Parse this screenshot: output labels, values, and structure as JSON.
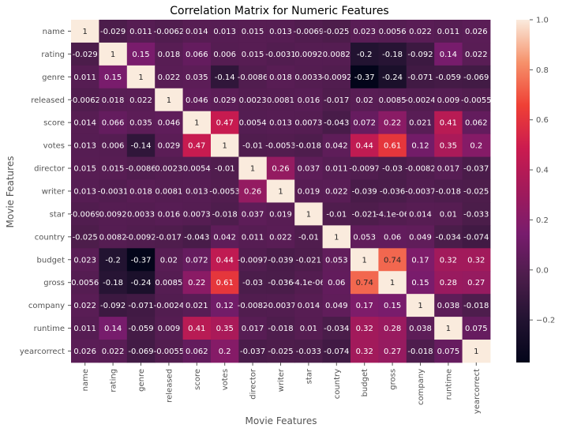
{
  "chart_data": {
    "type": "heatmap",
    "title": "Correlation Matrix for Numeric Features",
    "xlabel": "Movie Features",
    "ylabel": "Movie Features",
    "rows": [
      "name",
      "rating",
      "genre",
      "released",
      "score",
      "votes",
      "director",
      "writer",
      "star",
      "country",
      "budget",
      "gross",
      "company",
      "runtime",
      "yearcorrect"
    ],
    "columns": [
      "name",
      "rating",
      "genre",
      "released",
      "score",
      "votes",
      "director",
      "writer",
      "star",
      "country",
      "budget",
      "gross",
      "company",
      "runtime",
      "yearcorrect"
    ],
    "values": [
      [
        1,
        -0.029,
        0.011,
        -0.0062,
        0.014,
        0.013,
        0.015,
        0.013,
        -0.0069,
        -0.025,
        0.023,
        0.0056,
        0.022,
        0.011,
        0.026
      ],
      [
        -0.029,
        1,
        0.15,
        0.018,
        0.066,
        0.006,
        0.015,
        -0.0031,
        0.0092,
        0.0082,
        -0.2,
        -0.18,
        -0.092,
        0.14,
        0.022
      ],
      [
        0.011,
        0.15,
        1,
        0.022,
        0.035,
        -0.14,
        -0.0086,
        0.018,
        0.0033,
        -0.0092,
        -0.37,
        -0.24,
        -0.071,
        -0.059,
        -0.069
      ],
      [
        -0.0062,
        0.018,
        0.022,
        1,
        0.046,
        0.029,
        0.0023,
        0.0081,
        0.016,
        -0.017,
        0.02,
        0.0085,
        -0.0024,
        0.009,
        -0.0055
      ],
      [
        0.014,
        0.066,
        0.035,
        0.046,
        1,
        0.47,
        0.0054,
        0.013,
        0.0073,
        -0.043,
        0.072,
        0.22,
        0.021,
        0.41,
        0.062
      ],
      [
        0.013,
        0.006,
        -0.14,
        0.029,
        0.47,
        1,
        -0.01,
        -0.0053,
        -0.018,
        0.042,
        0.44,
        0.61,
        0.12,
        0.35,
        0.2
      ],
      [
        0.015,
        0.015,
        -0.0086,
        0.0023,
        0.0054,
        -0.01,
        1,
        0.26,
        0.037,
        0.011,
        -0.0097,
        -0.03,
        -0.0082,
        0.017,
        -0.037
      ],
      [
        0.013,
        -0.0031,
        0.018,
        0.0081,
        0.013,
        -0.0053,
        0.26,
        1,
        0.019,
        0.022,
        -0.039,
        -0.036,
        -0.0037,
        -0.018,
        -0.025
      ],
      [
        -0.0069,
        0.0092,
        0.0033,
        0.016,
        0.0073,
        -0.018,
        0.037,
        0.019,
        1,
        -0.01,
        -0.021,
        -4.1e-06,
        0.014,
        0.01,
        -0.033
      ],
      [
        -0.025,
        0.0082,
        -0.0092,
        -0.017,
        -0.043,
        0.042,
        0.011,
        0.022,
        -0.01,
        1,
        0.053,
        0.06,
        0.049,
        -0.034,
        -0.074
      ],
      [
        0.023,
        -0.2,
        -0.37,
        0.02,
        0.072,
        0.44,
        -0.0097,
        -0.039,
        -0.021,
        0.053,
        1,
        0.74,
        0.17,
        0.32,
        0.32
      ],
      [
        0.0056,
        -0.18,
        -0.24,
        0.0085,
        0.22,
        0.61,
        -0.03,
        -0.036,
        -4.1e-06,
        0.06,
        0.74,
        1,
        0.15,
        0.28,
        0.27
      ],
      [
        0.022,
        -0.092,
        -0.071,
        -0.0024,
        0.021,
        0.12,
        -0.0082,
        -0.0037,
        0.014,
        0.049,
        0.17,
        0.15,
        1,
        0.038,
        -0.018
      ],
      [
        0.011,
        0.14,
        -0.059,
        0.009,
        0.41,
        0.35,
        0.017,
        -0.018,
        0.01,
        -0.034,
        0.32,
        0.28,
        0.038,
        1,
        0.075
      ],
      [
        0.026,
        0.022,
        -0.069,
        -0.0055,
        0.062,
        0.2,
        -0.037,
        -0.025,
        -0.033,
        -0.074,
        0.32,
        0.27,
        -0.018,
        0.075,
        1
      ]
    ],
    "labels": [
      [
        "1",
        "-0.029",
        "0.011",
        "-0.0062",
        "0.014",
        "0.013",
        "0.015",
        "0.013",
        "-0.0069",
        "-0.025",
        "0.023",
        "0.0056",
        "0.022",
        "0.011",
        "0.026"
      ],
      [
        "-0.029",
        "1",
        "0.15",
        "0.018",
        "0.066",
        "0.006",
        "0.015",
        "-0.0031",
        "0.0092",
        "0.0082",
        "-0.2",
        "-0.18",
        "-0.092",
        "0.14",
        "0.022"
      ],
      [
        "0.011",
        "0.15",
        "1",
        "0.022",
        "0.035",
        "-0.14",
        "-0.0086",
        "0.018",
        "0.0033",
        "-0.0092",
        "-0.37",
        "-0.24",
        "-0.071",
        "-0.059",
        "-0.069"
      ],
      [
        "-0.0062",
        "0.018",
        "0.022",
        "1",
        "0.046",
        "0.029",
        "0.0023",
        "0.0081",
        "0.016",
        "-0.017",
        "0.02",
        "0.0085",
        "-0.0024",
        "0.009",
        "-0.0055"
      ],
      [
        "0.014",
        "0.066",
        "0.035",
        "0.046",
        "1",
        "0.47",
        "0.0054",
        "0.013",
        "0.0073",
        "-0.043",
        "0.072",
        "0.22",
        "0.021",
        "0.41",
        "0.062"
      ],
      [
        "0.013",
        "0.006",
        "-0.14",
        "0.029",
        "0.47",
        "1",
        "-0.01",
        "-0.0053",
        "-0.018",
        "0.042",
        "0.44",
        "0.61",
        "0.12",
        "0.35",
        "0.2"
      ],
      [
        "0.015",
        "0.015",
        "-0.0086",
        "0.0023",
        "0.0054",
        "-0.01",
        "1",
        "0.26",
        "0.037",
        "0.011",
        "-0.0097",
        "-0.03",
        "-0.0082",
        "0.017",
        "-0.037"
      ],
      [
        "0.013",
        "-0.0031",
        "0.018",
        "0.0081",
        "0.013",
        "-0.0053",
        "0.26",
        "1",
        "0.019",
        "0.022",
        "-0.039",
        "-0.036",
        "-0.0037",
        "-0.018",
        "-0.025"
      ],
      [
        "-0.0069",
        "0.0092",
        "0.0033",
        "0.016",
        "0.0073",
        "-0.018",
        "0.037",
        "0.019",
        "1",
        "-0.01",
        "-0.021",
        "-4.1e-06",
        "0.014",
        "0.01",
        "-0.033"
      ],
      [
        "-0.025",
        "0.0082",
        "-0.0092",
        "-0.017",
        "-0.043",
        "0.042",
        "0.011",
        "0.022",
        "-0.01",
        "1",
        "0.053",
        "0.06",
        "0.049",
        "-0.034",
        "-0.074"
      ],
      [
        "0.023",
        "-0.2",
        "-0.37",
        "0.02",
        "0.072",
        "0.44",
        "-0.0097",
        "-0.039",
        "-0.021",
        "0.053",
        "1",
        "0.74",
        "0.17",
        "0.32",
        "0.32"
      ],
      [
        "0.0056",
        "-0.18",
        "-0.24",
        "0.0085",
        "0.22",
        "0.61",
        "-0.03",
        "-0.036",
        "-4.1e-06",
        "0.06",
        "0.74",
        "1",
        "0.15",
        "0.28",
        "0.27"
      ],
      [
        "0.022",
        "-0.092",
        "-0.071",
        "-0.0024",
        "0.021",
        "0.12",
        "-0.0082",
        "-0.0037",
        "0.014",
        "0.049",
        "0.17",
        "0.15",
        "1",
        "0.038",
        "-0.018"
      ],
      [
        "0.011",
        "0.14",
        "-0.059",
        "0.009",
        "0.41",
        "0.35",
        "0.017",
        "-0.018",
        "0.01",
        "-0.034",
        "0.32",
        "0.28",
        "0.038",
        "1",
        "0.075"
      ],
      [
        "0.026",
        "0.022",
        "-0.069",
        "-0.0055",
        "0.062",
        "0.2",
        "-0.037",
        "-0.025",
        "-0.033",
        "-0.074",
        "0.32",
        "0.27",
        "-0.018",
        "0.075",
        "1"
      ]
    ],
    "colorscale": "rocket",
    "colorbar": {
      "range": [
        -0.37,
        1.0
      ],
      "ticks": [
        -0.2,
        0.0,
        0.2,
        0.4,
        0.6,
        0.8,
        1.0
      ],
      "tick_labels": [
        "−0.2",
        "0.0",
        "0.2",
        "0.4",
        "0.6",
        "0.8",
        "1.0"
      ]
    },
    "grid": false,
    "legend": "colorbar-right"
  }
}
